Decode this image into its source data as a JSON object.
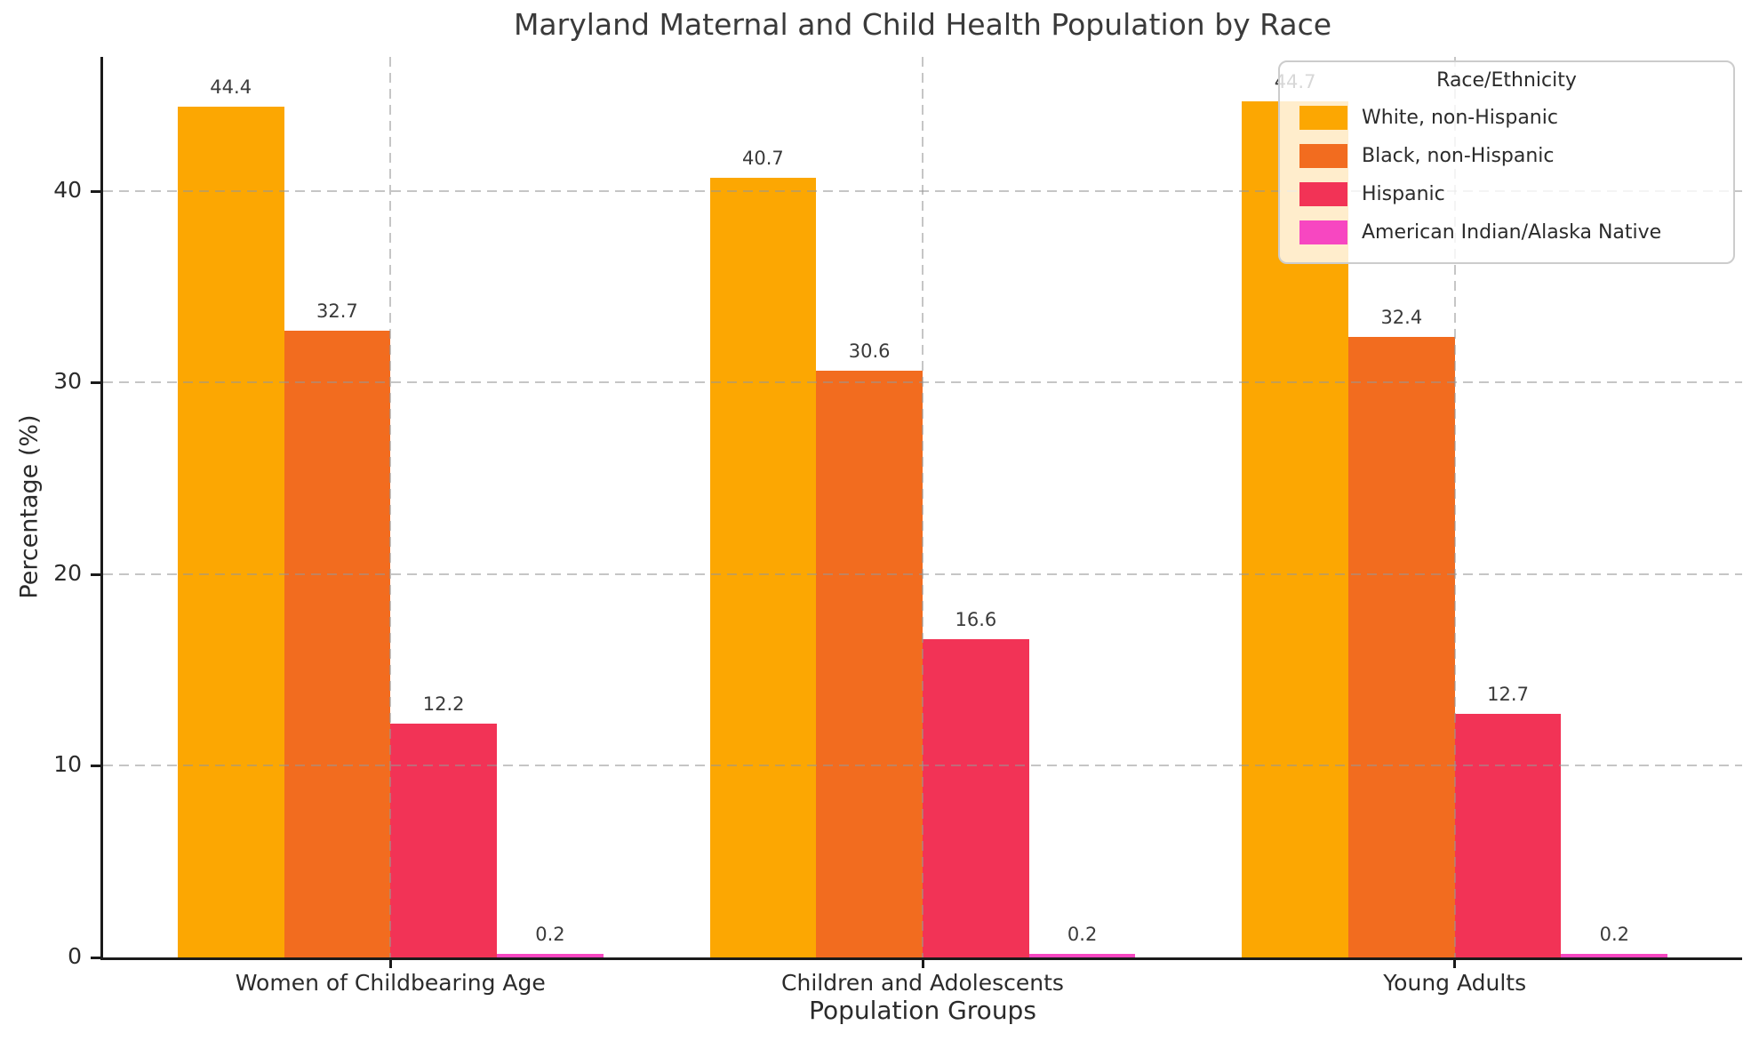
{
  "chart_data": {
    "type": "bar",
    "title": "Maryland Maternal and Child Health Population by Race",
    "xlabel": "Population Groups",
    "ylabel": "Percentage (%)",
    "categories": [
      "Women of Childbearing Age",
      "Children and Adolescents",
      "Young Adults"
    ],
    "series": [
      {
        "name": "White, non-Hispanic",
        "color": "#FCA702",
        "values": [
          44.4,
          40.7,
          44.7
        ]
      },
      {
        "name": "Black, non-Hispanic",
        "color": "#F26C1F",
        "values": [
          32.7,
          30.6,
          32.4
        ]
      },
      {
        "name": "Hispanic",
        "color": "#F23356",
        "values": [
          12.2,
          16.6,
          12.7
        ]
      },
      {
        "name": "American Indian/Alaska Native",
        "color": "#F747C1",
        "values": [
          0.2,
          0.2,
          0.2
        ]
      }
    ],
    "ylim": [
      0,
      47
    ],
    "yticks": [
      0,
      10,
      20,
      30,
      40
    ],
    "grid": "dashed, horizontal at yticks and vertical at category centers, drawn above bars",
    "bar_value_labels": true,
    "legend": {
      "title": "Race/Ethnicity",
      "position": "upper right",
      "translucent_background": true
    }
  }
}
